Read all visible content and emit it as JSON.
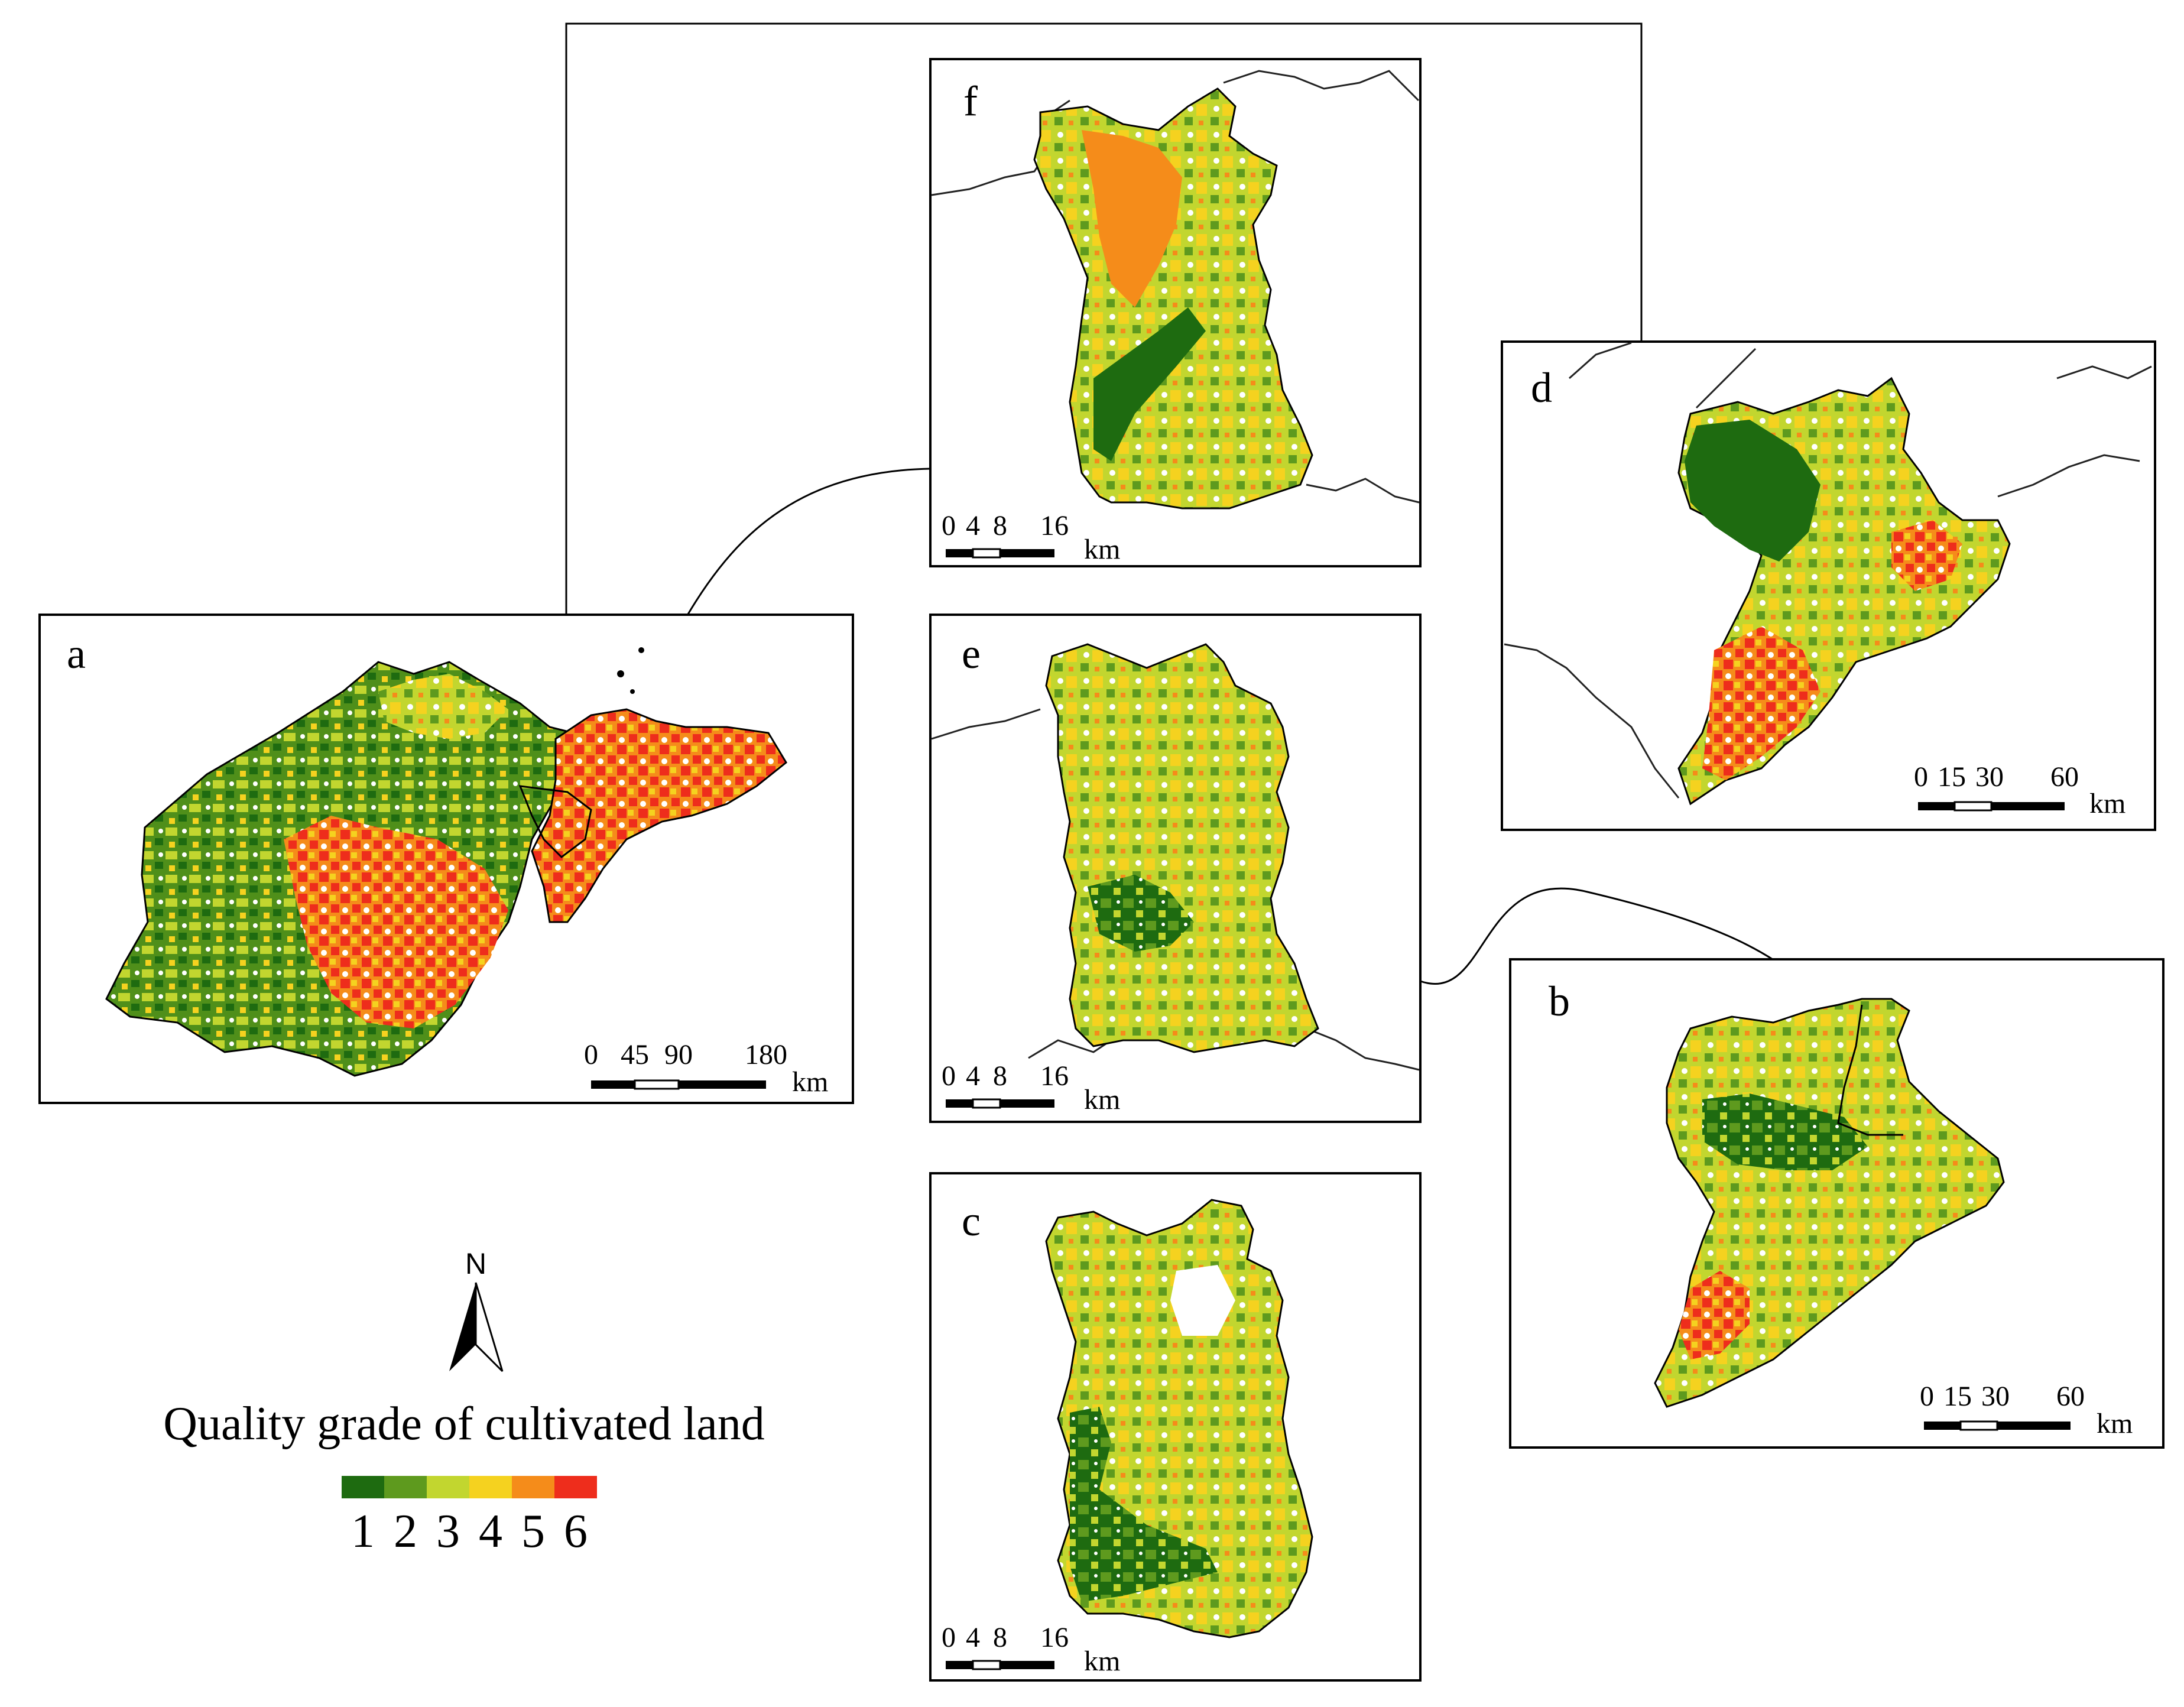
{
  "legend": {
    "title": "Quality grade of cultivated land",
    "grades": [
      {
        "label": "1",
        "color": "#1e6b10"
      },
      {
        "label": "2",
        "color": "#5e9a1e"
      },
      {
        "label": "3",
        "color": "#c2d62f"
      },
      {
        "label": "4",
        "color": "#f5d21f"
      },
      {
        "label": "5",
        "color": "#f58c1a"
      },
      {
        "label": "6",
        "color": "#ee2d1c"
      }
    ]
  },
  "north_arrow": {
    "letter": "N"
  },
  "panels": [
    {
      "id": "a",
      "letter": "a",
      "scale_ticks": [
        "0",
        "45",
        "90",
        "180"
      ],
      "scale_unit": "km"
    },
    {
      "id": "b",
      "letter": "b",
      "scale_ticks": [
        "0",
        "15",
        "30",
        "60"
      ],
      "scale_unit": "km"
    },
    {
      "id": "c",
      "letter": "c",
      "scale_ticks": [
        "0",
        "4",
        "8",
        "16"
      ],
      "scale_unit": "km"
    },
    {
      "id": "d",
      "letter": "d",
      "scale_ticks": [
        "0",
        "15",
        "30",
        "60"
      ],
      "scale_unit": "km"
    },
    {
      "id": "e",
      "letter": "e",
      "scale_ticks": [
        "0",
        "4",
        "8",
        "16"
      ],
      "scale_unit": "km"
    },
    {
      "id": "f",
      "letter": "f",
      "scale_ticks": [
        "0",
        "4",
        "8",
        "16"
      ],
      "scale_unit": "km"
    }
  ]
}
